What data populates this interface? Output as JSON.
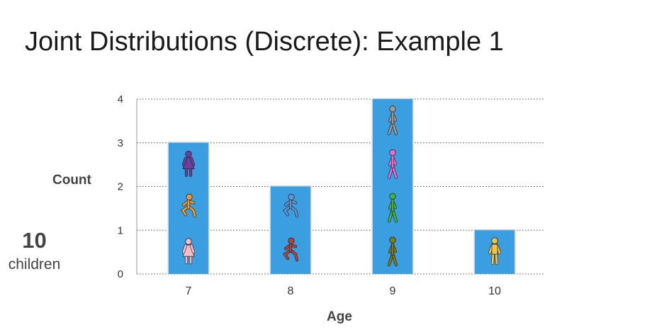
{
  "title": "Joint Distributions (Discrete): Example 1",
  "side_note": {
    "number": "10",
    "unit": "children"
  },
  "colors": {
    "bar": "#3a9ee0",
    "grid": "#555555"
  },
  "chart_data": {
    "type": "bar",
    "title": "",
    "xlabel": "Age",
    "ylabel": "Count",
    "categories": [
      "7",
      "8",
      "9",
      "10"
    ],
    "values": [
      3,
      2,
      4,
      1
    ],
    "ylim": [
      0,
      4
    ],
    "yticks": [
      "0",
      "1",
      "2",
      "3",
      "4"
    ],
    "grid": "horizontal dotted",
    "icons": [
      [
        {
          "kind": "girl-standing-icon",
          "color": "#f7bcc9"
        },
        {
          "kind": "child-running-icon",
          "color": "#f39a2c"
        },
        {
          "kind": "woman-standing-icon",
          "color": "#6a3fa0"
        }
      ],
      [
        {
          "kind": "child-running-icon",
          "color": "#b8403a"
        },
        {
          "kind": "child-running-icon",
          "color": "#5f95d6"
        }
      ],
      [
        {
          "kind": "person-walking-icon",
          "color": "#7a7a20"
        },
        {
          "kind": "person-walking-icon",
          "color": "#3cb549"
        },
        {
          "kind": "person-walking-icon",
          "color": "#e070d8"
        },
        {
          "kind": "person-walking-icon",
          "color": "#9a9a9a"
        }
      ],
      [
        {
          "kind": "person-standing-icon",
          "color": "#f2c64a"
        }
      ]
    ]
  }
}
